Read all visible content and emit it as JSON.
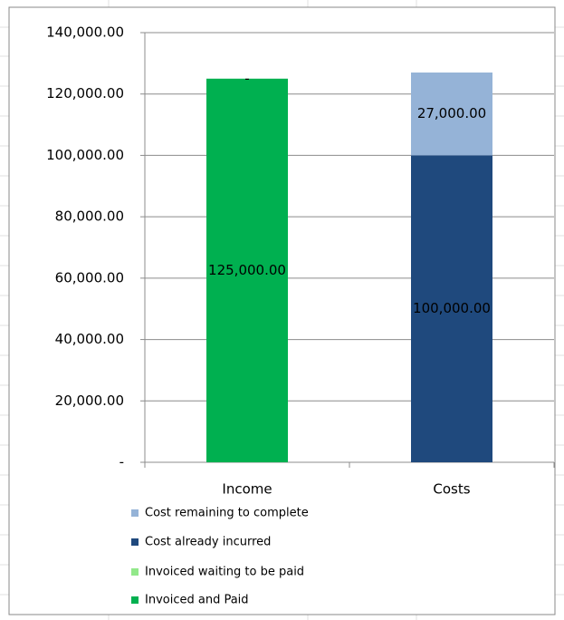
{
  "chart_data": {
    "type": "stacked_bar",
    "categories": [
      "Income",
      "Costs"
    ],
    "series": [
      {
        "name": "Invoiced and Paid",
        "color": "#00b050",
        "values": [
          125000,
          null
        ],
        "value_labels": [
          "125,000.00",
          null
        ]
      },
      {
        "name": "Invoiced waiting to be paid",
        "color": "#92e88a",
        "values": [
          0,
          null
        ],
        "value_labels": [
          "-",
          null
        ]
      },
      {
        "name": "Cost already incurred",
        "color": "#1f497d",
        "values": [
          null,
          100000
        ],
        "value_labels": [
          null,
          "100,000.00"
        ]
      },
      {
        "name": "Cost remaining to complete",
        "color": "#95b3d7",
        "values": [
          null,
          27000
        ],
        "value_labels": [
          null,
          "27,000.00"
        ]
      }
    ],
    "ylim": [
      0,
      140000
    ],
    "yticks": [
      {
        "value": 0,
        "label": "-"
      },
      {
        "value": 20000,
        "label": "20,000.00"
      },
      {
        "value": 40000,
        "label": "40,000.00"
      },
      {
        "value": 60000,
        "label": "60,000.00"
      },
      {
        "value": 80000,
        "label": "80,000.00"
      },
      {
        "value": 100000,
        "label": "100,000.00"
      },
      {
        "value": 120000,
        "label": "120,000.00"
      },
      {
        "value": 140000,
        "label": "140,000.00"
      }
    ],
    "grid": true
  }
}
